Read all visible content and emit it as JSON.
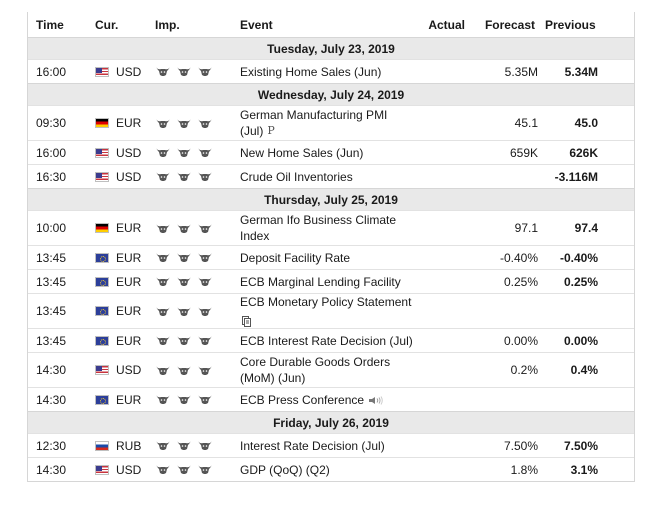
{
  "header": {
    "time": "Time",
    "currency": "Cur.",
    "importance": "Imp.",
    "event": "Event",
    "actual": "Actual",
    "forecast": "Forecast",
    "previous": "Previous"
  },
  "days": [
    {
      "label": "Tuesday, July 23, 2019",
      "events": [
        {
          "time": "16:00",
          "flag": "us",
          "currency": "USD",
          "importance": 3,
          "event": "Existing Home Sales (Jun)",
          "event_line2": "",
          "actual": "",
          "forecast": "5.35M",
          "previous": "5.34M",
          "icon": ""
        }
      ]
    },
    {
      "label": "Wednesday, July 24, 2019",
      "events": [
        {
          "time": "09:30",
          "flag": "de",
          "currency": "EUR",
          "importance": 3,
          "event": "German Manufacturing PMI",
          "event_line2": "(Jul)",
          "actual": "",
          "forecast": "45.1",
          "previous": "45.0",
          "icon": "P"
        },
        {
          "time": "16:00",
          "flag": "us",
          "currency": "USD",
          "importance": 3,
          "event": "New Home Sales (Jun)",
          "event_line2": "",
          "actual": "",
          "forecast": "659K",
          "previous": "626K",
          "icon": ""
        },
        {
          "time": "16:30",
          "flag": "us",
          "currency": "USD",
          "importance": 3,
          "event": "Crude Oil Inventories",
          "event_line2": "",
          "actual": "",
          "forecast": "",
          "previous": "-3.116M",
          "icon": ""
        }
      ]
    },
    {
      "label": "Thursday, July 25, 2019",
      "events": [
        {
          "time": "10:00",
          "flag": "de",
          "currency": "EUR",
          "importance": 3,
          "event": "German Ifo Business Climate",
          "event_line2": "Index",
          "actual": "",
          "forecast": "97.1",
          "previous": "97.4",
          "icon": ""
        },
        {
          "time": "13:45",
          "flag": "eu",
          "currency": "EUR",
          "importance": 3,
          "event": "Deposit Facility Rate",
          "event_line2": "",
          "actual": "",
          "forecast": "-0.40%",
          "previous": "-0.40%",
          "icon": ""
        },
        {
          "time": "13:45",
          "flag": "eu",
          "currency": "EUR",
          "importance": 3,
          "event": "ECB Marginal Lending Facility",
          "event_line2": "",
          "actual": "",
          "forecast": "0.25%",
          "previous": "0.25%",
          "icon": ""
        },
        {
          "time": "13:45",
          "flag": "eu",
          "currency": "EUR",
          "importance": 3,
          "event": "ECB Monetary Policy Statement",
          "event_line2": "",
          "actual": "",
          "forecast": "",
          "previous": "",
          "icon": "document-icon"
        },
        {
          "time": "13:45",
          "flag": "eu",
          "currency": "EUR",
          "importance": 3,
          "event": "ECB Interest Rate Decision (Jul)",
          "event_line2": "",
          "actual": "",
          "forecast": "0.00%",
          "previous": "0.00%",
          "icon": ""
        },
        {
          "time": "14:30",
          "flag": "us",
          "currency": "USD",
          "importance": 3,
          "event": "Core Durable Goods Orders",
          "event_line2": "(MoM) (Jun)",
          "actual": "",
          "forecast": "0.2%",
          "previous": "0.4%",
          "icon": ""
        },
        {
          "time": "14:30",
          "flag": "eu",
          "currency": "EUR",
          "importance": 3,
          "event": "ECB Press Conference",
          "event_line2": "",
          "actual": "",
          "forecast": "",
          "previous": "",
          "icon": "speaker-icon"
        }
      ]
    },
    {
      "label": "Friday, July 26, 2019",
      "events": [
        {
          "time": "12:30",
          "flag": "ru",
          "currency": "RUB",
          "importance": 3,
          "event": "Interest Rate Decision (Jul)",
          "event_line2": "",
          "actual": "",
          "forecast": "7.50%",
          "previous": "7.50%",
          "icon": ""
        },
        {
          "time": "14:30",
          "flag": "us",
          "currency": "USD",
          "importance": 3,
          "event": "GDP (QoQ) (Q2)",
          "event_line2": "",
          "actual": "",
          "forecast": "1.8%",
          "previous": "3.1%",
          "icon": ""
        }
      ]
    }
  ],
  "colors": {
    "day_background": "#e9e9e9",
    "border": "#d6d6d6",
    "bull_icon": "#555555"
  }
}
